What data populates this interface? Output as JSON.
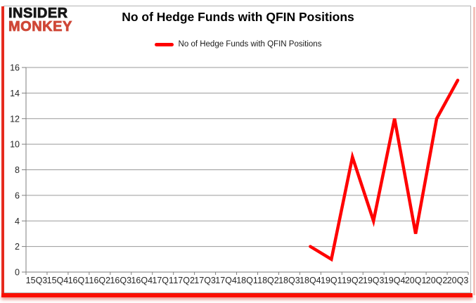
{
  "logo": {
    "line1": "INSIDER",
    "line2": "MONKEY",
    "black": "#171717",
    "red": "#cf4737"
  },
  "header": {
    "title": "No of Hedge Funds with QFIN Positions"
  },
  "legend": {
    "label": "No of Hedge Funds with QFIN Positions",
    "swatch_color": "#ff0000"
  },
  "colors": {
    "series_line": "#ff0000",
    "grid": "#9a9a9a",
    "axis": "#7f7f7f",
    "axis_text": "#262626",
    "frame_border": "#b3b3b3",
    "accent_red": "#fb0f00",
    "accent_pink": "#f5c0ba"
  },
  "chart_data": {
    "type": "line",
    "title": "No of Hedge Funds with QFIN Positions",
    "xlabel": "",
    "ylabel": "",
    "ylim": [
      0,
      16
    ],
    "ytick_step": 2,
    "grid": true,
    "legend_position": "top",
    "categories": [
      "15Q3",
      "15Q4",
      "16Q1",
      "16Q2",
      "16Q3",
      "16Q4",
      "17Q1",
      "17Q2",
      "17Q3",
      "17Q4",
      "18Q1",
      "18Q2",
      "18Q3",
      "18Q4",
      "19Q1",
      "19Q2",
      "19Q3",
      "19Q4",
      "20Q1",
      "20Q2",
      "20Q3"
    ],
    "series": [
      {
        "name": "No of Hedge Funds with QFIN Positions",
        "color": "#ff0000",
        "values": [
          null,
          null,
          null,
          null,
          null,
          null,
          null,
          null,
          null,
          null,
          null,
          null,
          null,
          2,
          1,
          9,
          4,
          12,
          3,
          12,
          15
        ]
      }
    ]
  }
}
